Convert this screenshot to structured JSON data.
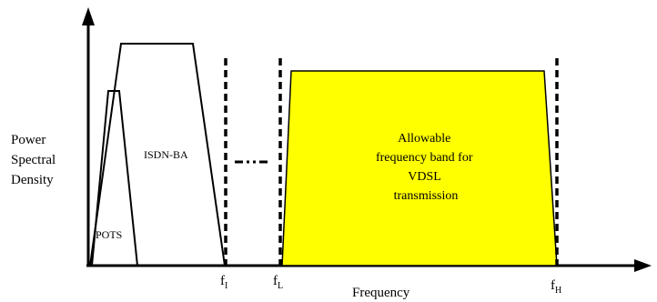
{
  "y_axis_title": [
    "Power",
    "Spectral",
    "Density"
  ],
  "x_axis_title": "Frequency",
  "bands": {
    "pots": "POTS",
    "isdn": "ISDN-BA",
    "vdsl": [
      "Allowable",
      "frequency band for",
      "VDSL",
      "transmission"
    ]
  },
  "frequency_markers": {
    "f_i": {
      "base": "f",
      "sub": "I"
    },
    "f_l": {
      "base": "f",
      "sub": "L"
    },
    "f_h": {
      "base": "f",
      "sub": "H"
    }
  },
  "colors": {
    "vdsl_fill": "#ffff00",
    "line": "#000000"
  }
}
